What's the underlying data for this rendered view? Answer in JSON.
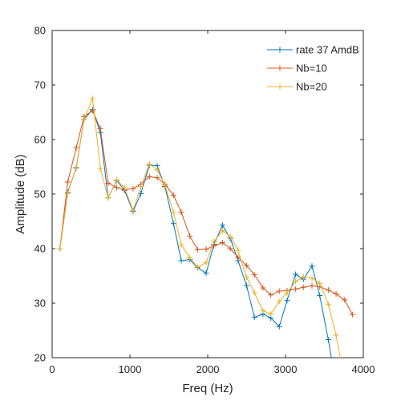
{
  "chart_data": {
    "type": "line",
    "title": "",
    "xlabel": "Freq (Hz)",
    "ylabel": "Amplitude (dB)",
    "xlim": [
      0,
      4000
    ],
    "ylim": [
      20,
      80
    ],
    "xticks": [
      0,
      1000,
      2000,
      3000,
      4000
    ],
    "yticks": [
      20,
      30,
      40,
      50,
      60,
      70,
      80
    ],
    "xtick_labels": [
      "0",
      "1000",
      "2000",
      "3000",
      "4000"
    ],
    "ytick_labels": [
      "20",
      "30",
      "40",
      "50",
      "60",
      "70",
      "80"
    ],
    "grid": false,
    "legend_position": "top-right",
    "marker": "+",
    "series": [
      {
        "name": "rate 37 AmdB",
        "color": "#0072BD",
        "x": [
          100,
          200,
          310,
          410,
          520,
          620,
          720,
          830,
          930,
          1040,
          1140,
          1250,
          1350,
          1450,
          1560,
          1660,
          1770,
          1870,
          1980,
          2080,
          2190,
          2290,
          2390,
          2500,
          2600,
          2710,
          2810,
          2920,
          3020,
          3130,
          3230,
          3340,
          3440,
          3550,
          3650
        ],
        "y": [
          40,
          50.3,
          54.8,
          63.7,
          65.5,
          61.3,
          49.3,
          52.5,
          50.7,
          46.8,
          50.1,
          55.3,
          55.2,
          51.4,
          44.6,
          37.8,
          38,
          36.5,
          35.5,
          40.8,
          44.3,
          41.9,
          37.8,
          33.2,
          27.4,
          28,
          27.3,
          25.7,
          30.5,
          35.3,
          34.4,
          36.8,
          31.4,
          23.3,
          15
        ]
      },
      {
        "name": "Nb=10",
        "color": "#D95319",
        "x": [
          100,
          200,
          310,
          410,
          520,
          620,
          720,
          830,
          930,
          1040,
          1140,
          1250,
          1350,
          1450,
          1560,
          1660,
          1770,
          1870,
          1980,
          2080,
          2190,
          2290,
          2390,
          2500,
          2600,
          2710,
          2810,
          2920,
          3020,
          3130,
          3230,
          3340,
          3440,
          3550,
          3650,
          3760,
          3860
        ],
        "y": [
          40,
          52.2,
          58.5,
          64.2,
          65.3,
          62,
          52,
          51.2,
          50.8,
          51,
          51.8,
          53.2,
          53,
          51.8,
          49.8,
          46.7,
          42.3,
          39.8,
          39.9,
          40.5,
          41.1,
          40,
          38.4,
          36.9,
          35.2,
          32.8,
          31.5,
          32.2,
          32.3,
          32.6,
          32.9,
          33.2,
          33,
          32.4,
          31.7,
          30.6,
          27.9
        ]
      },
      {
        "name": "Nb=20",
        "color": "#EDB120",
        "x": [
          100,
          200,
          310,
          410,
          520,
          620,
          720,
          830,
          930,
          1040,
          1140,
          1250,
          1350,
          1450,
          1560,
          1660,
          1770,
          1870,
          1980,
          2080,
          2190,
          2290,
          2390,
          2500,
          2600,
          2710,
          2810,
          2920,
          3020,
          3130,
          3230,
          3340,
          3440,
          3550,
          3650,
          3760
        ],
        "y": [
          40,
          50.1,
          54.9,
          63.7,
          67.5,
          54.7,
          49.3,
          52.6,
          51.2,
          47,
          51.4,
          55.5,
          54.5,
          51.6,
          46.7,
          40.7,
          38.3,
          36.6,
          37.4,
          41.3,
          43.3,
          42.2,
          39.7,
          34.7,
          31.9,
          28.6,
          28,
          30.3,
          31.9,
          34,
          34.8,
          34.6,
          33.6,
          29.8,
          24.1,
          16
        ]
      }
    ]
  }
}
